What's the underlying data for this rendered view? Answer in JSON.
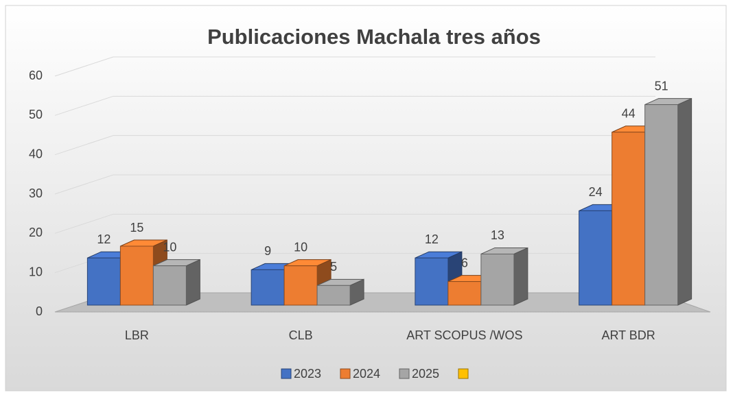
{
  "chart_data": {
    "type": "bar3d",
    "title": "Publicaciones Machala tres años",
    "categories": [
      "LBR",
      "CLB",
      "ART SCOPUS /WOS",
      "ART BDR"
    ],
    "series": [
      {
        "name": "2023",
        "color": "#4472c4",
        "values": [
          12,
          9,
          12,
          24
        ]
      },
      {
        "name": "2024",
        "color": "#ed7d31",
        "values": [
          15,
          10,
          6,
          44
        ]
      },
      {
        "name": "2025",
        "color": "#a5a5a5",
        "values": [
          10,
          5,
          13,
          51
        ]
      },
      {
        "name": null,
        "color": "#ffc000",
        "values": [
          null,
          null,
          null,
          null
        ]
      }
    ],
    "ylim": [
      0,
      60
    ],
    "yticks": [
      0,
      10,
      20,
      30,
      40,
      50,
      60
    ],
    "grid": true,
    "legend": "bottom"
  }
}
